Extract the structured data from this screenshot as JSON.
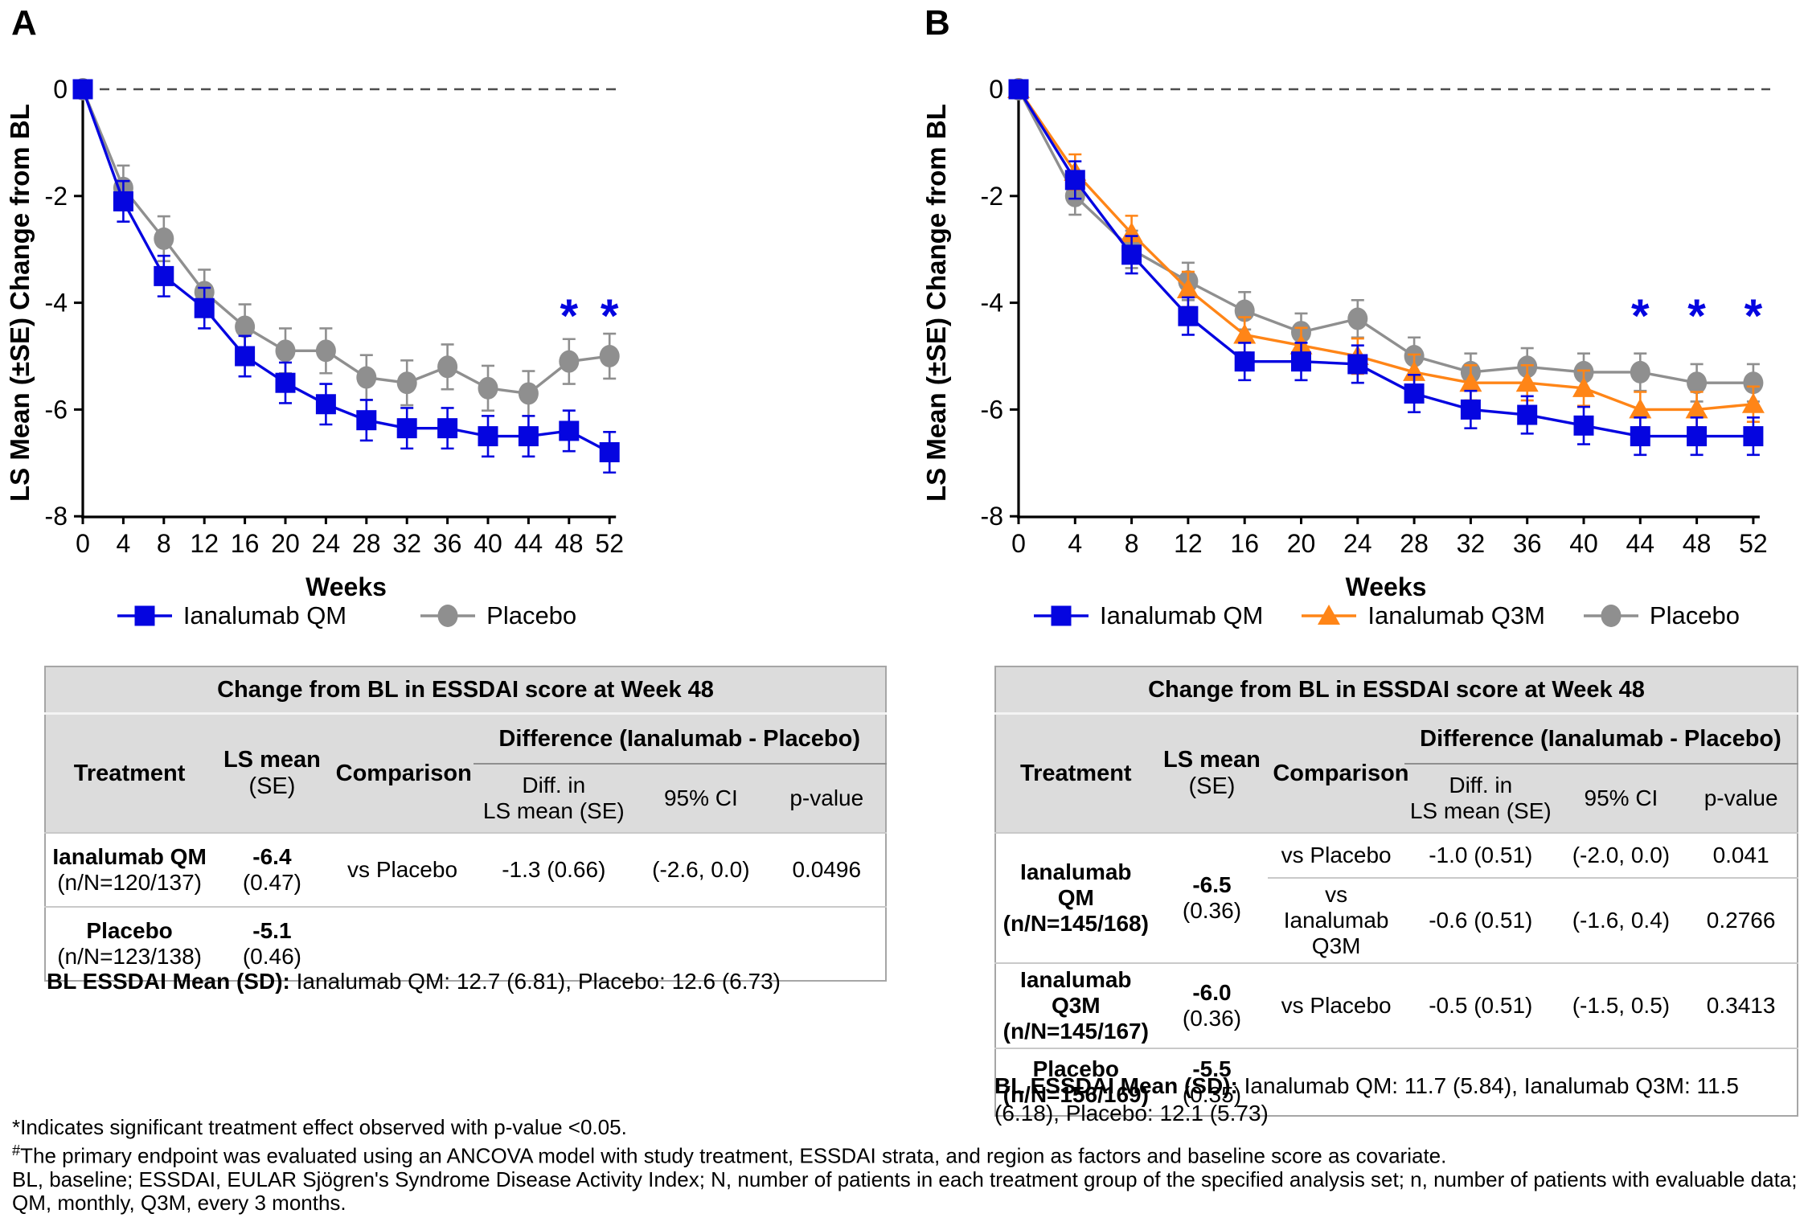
{
  "figure": {
    "panel_a": {
      "label": "A",
      "bl_note_label": "BL ESSDAI Mean (SD):",
      "bl_note_text": "Ianalumab QM: 12.7 (6.81), Placebo: 12.6 (6.73)",
      "table": {
        "title": "Change from BL in ESSDAI score at Week 48",
        "col_headers": {
          "treatment": "Treatment",
          "ls_mean": "LS mean",
          "ls_mean_sub": "(SE)",
          "comparison": "Comparison",
          "diff_group": "Difference (Ianalumab - Placebo)",
          "diff": "Diff. in",
          "diff2": "LS mean (SE)",
          "ci": "95% CI",
          "p": "p-value"
        },
        "rows": [
          {
            "treatment": "Ianalumab QM",
            "n": "(n/N=120/137)",
            "ls": "-6.4",
            "se": "(0.47)",
            "comparisons": [
              {
                "label": "vs Placebo",
                "diff": "-1.3 (0.66)",
                "ci": "(-2.6, 0.0)",
                "p": "0.0496"
              }
            ]
          },
          {
            "treatment": "Placebo",
            "n": "(n/N=123/138)",
            "ls": "-5.1",
            "se": "(0.46)",
            "comparisons": []
          }
        ]
      }
    },
    "panel_b": {
      "label": "B",
      "bl_note_label": "BL ESSDAI Mean (SD):",
      "bl_note_text": "Ianalumab QM: 11.7 (5.84), Ianalumab Q3M: 11.5 (6.18), Placebo: 12.1 (5.73)",
      "table": {
        "title": "Change from BL in ESSDAI score at Week 48",
        "col_headers": {
          "treatment": "Treatment",
          "ls_mean": "LS mean",
          "ls_mean_sub": "(SE)",
          "comparison": "Comparison",
          "diff_group": "Difference (Ianalumab - Placebo)",
          "diff": "Diff. in",
          "diff2": "LS mean (SE)",
          "ci": "95% CI",
          "p": "p-value"
        },
        "rows": [
          {
            "treatment": "Ianalumab QM",
            "n": "(n/N=145/168)",
            "ls": "-6.5",
            "se": "(0.36)",
            "comparisons": [
              {
                "label": "vs Placebo",
                "diff": "-1.0 (0.51)",
                "ci": "(-2.0, 0.0)",
                "p": "0.041"
              },
              {
                "label": "vs Ianalumab Q3M",
                "diff": "-0.6 (0.51)",
                "ci": "(-1.6, 0.4)",
                "p": "0.2766"
              }
            ]
          },
          {
            "treatment": "Ianalumab Q3M",
            "n": "(n/N=145/167)",
            "ls": "-6.0",
            "se": "(0.36)",
            "comparisons": [
              {
                "label": "vs Placebo",
                "diff": "-0.5 (0.51)",
                "ci": "(-1.5, 0.5)",
                "p": "0.3413"
              }
            ]
          },
          {
            "treatment": "Placebo",
            "n": "(n/N=156/169)",
            "ls": "-5.5",
            "se": "(0.35)",
            "comparisons": []
          }
        ]
      }
    },
    "footnotes": [
      {
        "marker": "*",
        "sup": false,
        "text": "Indicates significant treatment effect observed with p-value <0.05."
      },
      {
        "marker": "#",
        "sup": true,
        "text": "The primary endpoint was evaluated using an ANCOVA model with study treatment, ESSDAI strata, and region as factors and baseline score as covariate."
      },
      {
        "marker": "",
        "sup": false,
        "text": "BL, baseline; ESSDAI, EULAR Sjögren's Syndrome Disease Activity Index; N, number of patients in each treatment group of the specified analysis set; n, number of patients with evaluable data;"
      },
      {
        "marker": "",
        "sup": false,
        "text": "QM, monthly, Q3M, every 3 months."
      }
    ],
    "colors": {
      "ianalumab_qm": "#0505e0",
      "ianalumab_q3m": "#ff8517",
      "placebo": "#8f8f8f",
      "zero_line": "#4d4d4d",
      "significance": "#0505e0"
    }
  },
  "chart_data": [
    {
      "id": "A",
      "type": "line",
      "xlabel": "Weeks",
      "ylabel": "LS Mean (±SE) Change from BL",
      "x": [
        0,
        4,
        8,
        12,
        16,
        20,
        24,
        28,
        32,
        36,
        40,
        44,
        48,
        52
      ],
      "xlim": [
        0,
        52
      ],
      "ylim": [
        -8,
        0
      ],
      "yticks": [
        0,
        -2,
        -4,
        -6,
        -8
      ],
      "grid": false,
      "zero_reference_line": true,
      "legend_position": "bottom",
      "series": [
        {
          "name": "Ianalumab QM",
          "marker": "square",
          "color": "#0505e0",
          "se": 0.38,
          "values": [
            0,
            -2.1,
            -3.5,
            -4.1,
            -5.0,
            -5.5,
            -5.9,
            -6.2,
            -6.35,
            -6.35,
            -6.5,
            -6.5,
            -6.4,
            -6.8
          ]
        },
        {
          "name": "Placebo",
          "marker": "circle",
          "color": "#8f8f8f",
          "se": 0.42,
          "values": [
            0,
            -1.85,
            -2.8,
            -3.8,
            -4.45,
            -4.9,
            -4.9,
            -5.4,
            -5.5,
            -5.2,
            -5.6,
            -5.7,
            -5.1,
            -5.0
          ]
        }
      ],
      "significance": {
        "symbol": "*",
        "weeks": [
          48,
          52
        ],
        "level": -4.55,
        "color": "#0505e0"
      }
    },
    {
      "id": "B",
      "type": "line",
      "xlabel": "Weeks",
      "ylabel": "LS Mean (±SE) Change from BL",
      "x": [
        0,
        4,
        8,
        12,
        16,
        20,
        24,
        28,
        32,
        36,
        40,
        44,
        48,
        52
      ],
      "xlim": [
        0,
        52
      ],
      "ylim": [
        -8,
        0
      ],
      "yticks": [
        0,
        -2,
        -4,
        -6,
        -8
      ],
      "grid": false,
      "zero_reference_line": true,
      "legend_position": "bottom",
      "series": [
        {
          "name": "Ianalumab QM",
          "marker": "square",
          "color": "#0505e0",
          "se": 0.35,
          "values": [
            0,
            -1.7,
            -3.1,
            -4.25,
            -5.1,
            -5.1,
            -5.15,
            -5.7,
            -6.0,
            -6.1,
            -6.3,
            -6.5,
            -6.5,
            -6.5
          ]
        },
        {
          "name": "Ianalumab Q3M",
          "marker": "triangle",
          "color": "#ff8517",
          "se": 0.33,
          "values": [
            0,
            -1.55,
            -2.7,
            -3.75,
            -4.6,
            -4.8,
            -5.0,
            -5.3,
            -5.5,
            -5.5,
            -5.6,
            -6.0,
            -6.0,
            -5.9
          ]
        },
        {
          "name": "Placebo",
          "marker": "circle",
          "color": "#8f8f8f",
          "se": 0.35,
          "values": [
            0,
            -2.0,
            -3.0,
            -3.6,
            -4.15,
            -4.55,
            -4.3,
            -5.0,
            -5.3,
            -5.2,
            -5.3,
            -5.3,
            -5.5,
            -5.5
          ]
        }
      ],
      "significance": {
        "symbol": "*",
        "weeks": [
          44,
          48,
          52
        ],
        "level": -4.55,
        "color": "#0505e0"
      }
    }
  ]
}
